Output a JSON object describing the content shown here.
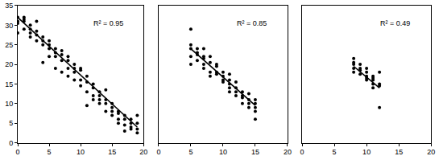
{
  "chart_data": [
    {
      "type": "scatter",
      "annotation": "R² = 0.95",
      "xlim": [
        0,
        20
      ],
      "ylim": [
        0,
        35
      ],
      "xticks": [
        0,
        5,
        10,
        15,
        20
      ],
      "yticks": [
        0,
        5,
        10,
        15,
        20,
        25,
        30,
        35
      ],
      "grid": false,
      "tick_labels": true,
      "series": [
        {
          "type": "scatter",
          "marker": "circle",
          "color": "#000000",
          "x": [
            0,
            0,
            0,
            0,
            1,
            1,
            1,
            1,
            2,
            2,
            2,
            2,
            3,
            3,
            3,
            3,
            4,
            4,
            4,
            4,
            5,
            5,
            5,
            5,
            6,
            6,
            6,
            6,
            7,
            7,
            7,
            7,
            8,
            8,
            8,
            8,
            9,
            9,
            9,
            9,
            10,
            10,
            10,
            10,
            11,
            11,
            11,
            11,
            12,
            12,
            12,
            12,
            13,
            13,
            13,
            13,
            14,
            14,
            14,
            14,
            15,
            15,
            15,
            15,
            16,
            16,
            16,
            16,
            17,
            17,
            17,
            17,
            18,
            18,
            18,
            18,
            19,
            19,
            19,
            19
          ],
          "values": [
            31,
            32,
            28,
            30.5,
            32,
            31,
            29,
            31.5,
            30,
            28,
            29,
            27,
            28.5,
            31,
            26,
            27.5,
            26,
            25,
            20.5,
            27,
            26,
            24,
            25,
            22,
            24,
            22,
            19,
            23,
            22.5,
            21,
            18,
            23.5,
            21,
            19,
            22,
            17,
            19,
            16,
            20,
            18,
            18.5,
            14.5,
            16,
            19,
            15.5,
            13,
            17,
            9.5,
            14,
            12,
            11,
            15,
            11,
            12,
            10,
            13,
            10,
            11,
            8,
            13.5,
            9,
            8,
            10,
            7,
            8,
            6,
            7.5,
            5,
            6,
            3,
            7,
            4.5,
            5,
            3.5,
            6,
            4,
            5,
            2.5,
            7,
            3.5
          ]
        },
        {
          "type": "line",
          "line_style": "solid",
          "color": "#000000",
          "x": [
            0,
            19
          ],
          "values": [
            32,
            4
          ]
        }
      ]
    },
    {
      "type": "scatter",
      "annotation": "R² = 0.85",
      "xlim": [
        0,
        20
      ],
      "ylim": [
        0,
        35
      ],
      "xticks": [
        0,
        5,
        10,
        15,
        20
      ],
      "yticks": [
        0,
        5,
        10,
        15,
        20,
        25,
        30,
        35
      ],
      "grid": false,
      "tick_labels": "x",
      "series": [
        {
          "type": "scatter",
          "marker": "circle",
          "color": "#000000",
          "x": [
            5,
            5,
            5,
            5,
            5,
            6,
            6,
            6,
            6,
            7,
            7,
            7,
            7,
            7,
            8,
            8,
            8,
            8,
            9,
            9,
            9,
            9,
            10,
            10,
            10,
            10,
            11,
            11,
            11,
            11,
            11,
            12,
            12,
            12,
            12,
            13,
            13,
            13,
            13,
            14,
            14,
            14,
            14,
            15,
            15,
            15,
            15,
            15
          ],
          "values": [
            29,
            25,
            24,
            22,
            20,
            24,
            22.5,
            21,
            23,
            24,
            22,
            20,
            21.5,
            19,
            22,
            20.5,
            18,
            17,
            20,
            18,
            17.5,
            19.5,
            18,
            16,
            15.5,
            17,
            16,
            15,
            14,
            17.5,
            13,
            14,
            13,
            15.5,
            12,
            13,
            11.5,
            12,
            10,
            11,
            10,
            12.5,
            9,
            10,
            8,
            9,
            6,
            11
          ]
        },
        {
          "type": "line",
          "line_style": "solid",
          "color": "#000000",
          "x": [
            5,
            15
          ],
          "values": [
            24,
            9.5
          ]
        }
      ]
    },
    {
      "type": "scatter",
      "annotation": "R² = 0.49",
      "xlim": [
        0,
        20
      ],
      "ylim": [
        0,
        35
      ],
      "xticks": [
        0,
        5,
        10,
        15,
        20
      ],
      "yticks": [
        0,
        5,
        10,
        15,
        20,
        25,
        30,
        35
      ],
      "grid": false,
      "tick_labels": "x",
      "series": [
        {
          "type": "scatter",
          "marker": "circle",
          "color": "#000000",
          "x": [
            8,
            8,
            8,
            8,
            8,
            9,
            9,
            9,
            9,
            10,
            10,
            10,
            10,
            10,
            11,
            11,
            11,
            11,
            11,
            12,
            12,
            12,
            12
          ],
          "values": [
            21.5,
            20.5,
            19,
            18,
            20,
            20,
            19,
            17.5,
            18.5,
            18,
            17,
            16,
            16.5,
            19,
            17,
            16,
            15,
            14,
            16.5,
            15,
            14.5,
            18,
            9
          ]
        },
        {
          "type": "line",
          "line_style": "solid",
          "color": "#000000",
          "x": [
            8,
            12
          ],
          "values": [
            19.5,
            14
          ]
        }
      ]
    }
  ]
}
